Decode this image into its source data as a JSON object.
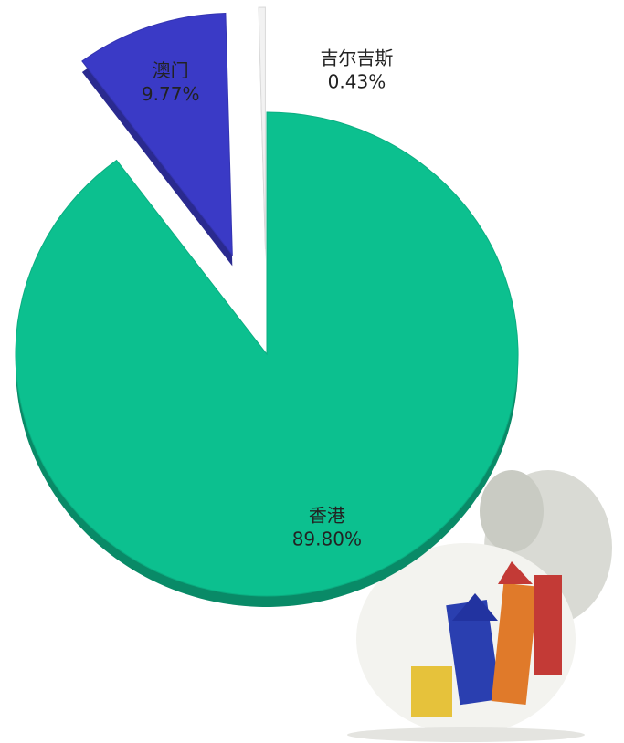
{
  "chart_data": {
    "type": "pie",
    "categories": [
      "香港",
      "澳门",
      "吉尔吉斯"
    ],
    "values": [
      89.8,
      9.77,
      0.43
    ],
    "value_labels": [
      "89.80%",
      "9.77%",
      "0.43%"
    ],
    "colors": [
      "#0cc08f",
      "#3a3ac6",
      "#f2f2f2"
    ]
  }
}
